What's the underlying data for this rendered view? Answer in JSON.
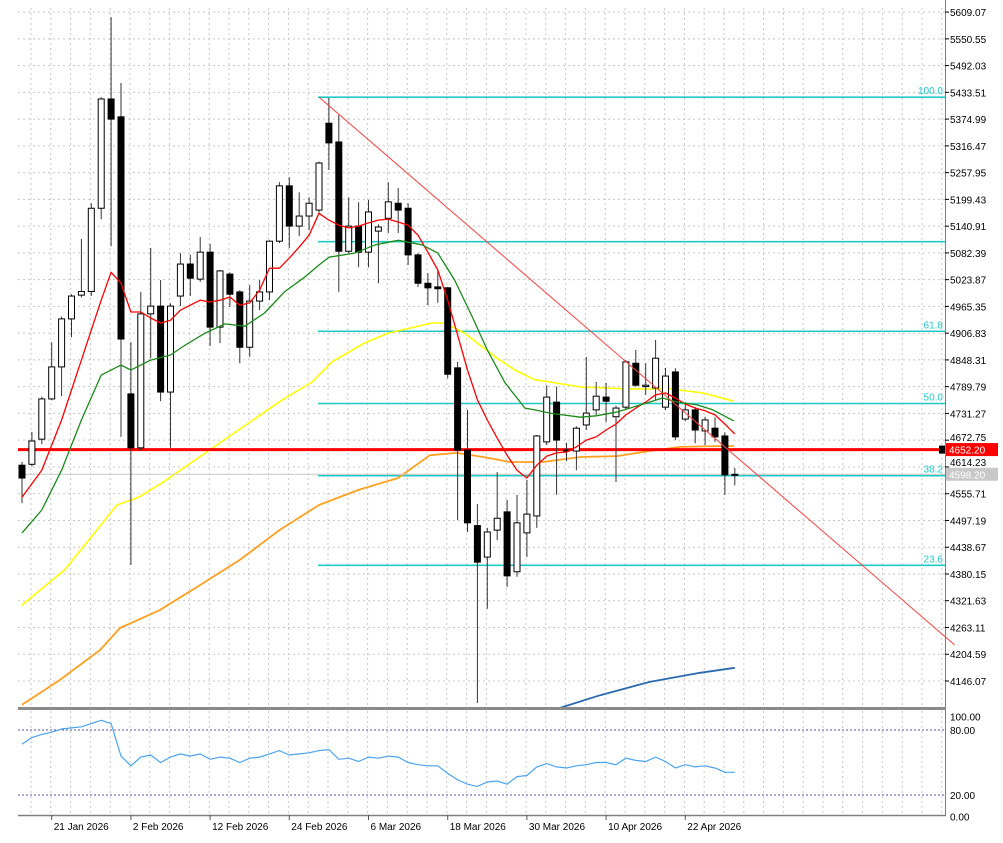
{
  "chart_data": {
    "type": "candlestick",
    "colors": {
      "bull_body": "#ffffff",
      "bear_body": "#000000",
      "wick": "#333333",
      "grid": "#c8c8c8",
      "fib": "#20c8c8",
      "trendline": "#ff4040",
      "price_line": "#ff0000",
      "bid_line": "#c8c8c8",
      "oscillator": "#4aa3f0",
      "osc_levels": "#5050a0"
    },
    "price_axis": {
      "ylim": [
        4087,
        5618
      ],
      "ticks": [
        "5609.07",
        "5550.55",
        "5492.03",
        "5433.51",
        "5374.99",
        "5316.47",
        "5257.95",
        "5199.43",
        "5140.91",
        "5082.39",
        "5023.87",
        "4965.35",
        "4906.83",
        "4848.31",
        "4789.79",
        "4731.27",
        "4672.75",
        "4614.23",
        "4555.71",
        "4497.19",
        "4438.67",
        "4380.15",
        "4321.63",
        "4263.11",
        "4204.59",
        "4146.07"
      ]
    },
    "x_axis": {
      "bar_count": 73,
      "ticks": [
        {
          "bar": 3,
          "label": "21 Jan 2026"
        },
        {
          "bar": 11,
          "label": "2 Feb 2026"
        },
        {
          "bar": 19,
          "label": "12 Feb 2026"
        },
        {
          "bar": 27,
          "label": "24 Feb 2026"
        },
        {
          "bar": 35,
          "label": "6 Mar 2026"
        },
        {
          "bar": 43,
          "label": "18 Mar 2026"
        },
        {
          "bar": 51,
          "label": "30 Mar 2026"
        },
        {
          "bar": 59,
          "label": "10 Apr 2026"
        },
        {
          "bar": 67,
          "label": "22 Apr 2026"
        }
      ]
    },
    "candles_ohlc": [
      [
        4618,
        4625,
        4535,
        4590
      ],
      [
        4620,
        4691,
        4615,
        4671
      ],
      [
        4675,
        4768,
        4664,
        4763
      ],
      [
        4763,
        4887,
        4760,
        4833
      ],
      [
        4833,
        4943,
        4769,
        4938
      ],
      [
        4938,
        4992,
        4898,
        4988
      ],
      [
        4990,
        5113,
        4985,
        4998
      ],
      [
        4998,
        5191,
        4988,
        5180
      ],
      [
        5180,
        5423,
        5156,
        5419
      ],
      [
        5419,
        5598,
        5097,
        5375
      ],
      [
        5380,
        5454,
        4680,
        4894
      ],
      [
        4774,
        4887,
        4400,
        4656
      ],
      [
        4656,
        4997,
        4650,
        4949
      ],
      [
        4949,
        5093,
        4852,
        4966
      ],
      [
        4966,
        5023,
        4758,
        4778
      ],
      [
        4778,
        4972,
        4656,
        4966
      ],
      [
        4988,
        5082,
        4966,
        5058
      ],
      [
        5058,
        5078,
        4988,
        5027
      ],
      [
        5025,
        5117,
        5019,
        5084
      ],
      [
        5084,
        5102,
        4879,
        4920
      ],
      [
        4920,
        5045,
        4885,
        5043
      ],
      [
        5036,
        5040,
        4964,
        4992
      ],
      [
        4997,
        5001,
        4841,
        4876
      ],
      [
        4876,
        5012,
        4855,
        4977
      ],
      [
        4977,
        5023,
        4957,
        4997
      ],
      [
        4997,
        5110,
        4979,
        5108
      ],
      [
        5108,
        5237,
        5104,
        5229
      ],
      [
        5229,
        5248,
        5093,
        5141
      ],
      [
        5141,
        5215,
        5119,
        5163
      ],
      [
        5163,
        5204,
        5132,
        5191
      ],
      [
        5176,
        5282,
        5170,
        5279
      ],
      [
        5366,
        5421,
        5264,
        5323
      ],
      [
        5325,
        5384,
        4997,
        5086
      ],
      [
        5086,
        5204,
        5082,
        5141
      ],
      [
        5141,
        5193,
        5051,
        5084
      ],
      [
        5084,
        5198,
        5051,
        5172
      ],
      [
        5130,
        5145,
        5016,
        5139
      ],
      [
        5158,
        5237,
        5126,
        5194
      ],
      [
        5191,
        5224,
        5126,
        5176
      ],
      [
        5180,
        5191,
        5056,
        5078
      ],
      [
        5078,
        5082,
        5008,
        5016
      ],
      [
        5016,
        5038,
        4968,
        5006
      ],
      [
        5008,
        5045,
        4973,
        5004
      ],
      [
        5006,
        5008,
        4808,
        4817
      ],
      [
        4831,
        4844,
        4498,
        4651
      ],
      [
        4651,
        4739,
        4472,
        4492
      ],
      [
        4486,
        4533,
        4098,
        4406
      ],
      [
        4417,
        4481,
        4304,
        4472
      ],
      [
        4476,
        4603,
        4454,
        4502
      ],
      [
        4516,
        4542,
        4352,
        4376
      ],
      [
        4385,
        4553,
        4374,
        4492
      ],
      [
        4470,
        4586,
        4417,
        4511
      ],
      [
        4507,
        4684,
        4481,
        4682
      ],
      [
        4669,
        4793,
        4662,
        4767
      ],
      [
        4756,
        4790,
        4553,
        4673
      ],
      [
        4651,
        4667,
        4627,
        4649
      ],
      [
        4649,
        4703,
        4607,
        4699
      ],
      [
        4706,
        4855,
        4695,
        4732
      ],
      [
        4739,
        4800,
        4728,
        4769
      ],
      [
        4767,
        4798,
        4712,
        4758
      ],
      [
        4724,
        4748,
        4581,
        4743
      ],
      [
        4745,
        4848,
        4739,
        4844
      ],
      [
        4841,
        4870,
        4790,
        4793
      ],
      [
        4790,
        4841,
        4772,
        4793
      ],
      [
        4787,
        4892,
        4760,
        4852
      ],
      [
        4745,
        4831,
        4739,
        4813
      ],
      [
        4822,
        4830,
        4673,
        4680
      ],
      [
        4719,
        4756,
        4714,
        4739
      ],
      [
        4739,
        4745,
        4666,
        4695
      ],
      [
        4693,
        4724,
        4662,
        4717
      ],
      [
        4699,
        4723,
        4669,
        4680
      ],
      [
        4682,
        4690,
        4553,
        4597
      ],
      [
        4598,
        4612,
        4574,
        4598
      ]
    ],
    "moving_averages": [
      {
        "name": "fast-ma",
        "color": "#ff0000",
        "width": 1.3,
        "points": [
          [
            0,
            4548
          ],
          [
            2,
            4607
          ],
          [
            4,
            4717
          ],
          [
            6,
            4848
          ],
          [
            8,
            4979
          ],
          [
            9,
            5040
          ],
          [
            10,
            5016
          ],
          [
            11,
            4953
          ],
          [
            12,
            4953
          ],
          [
            13,
            4940
          ],
          [
            14,
            4929
          ],
          [
            15,
            4935
          ],
          [
            16,
            4957
          ],
          [
            17,
            4968
          ],
          [
            18,
            4979
          ],
          [
            19,
            4975
          ],
          [
            20,
            4979
          ],
          [
            21,
            4986
          ],
          [
            22,
            4968
          ],
          [
            23,
            4973
          ],
          [
            24,
            5001
          ],
          [
            25,
            5049
          ],
          [
            26,
            5049
          ],
          [
            27,
            5071
          ],
          [
            28,
            5095
          ],
          [
            29,
            5121
          ],
          [
            30,
            5169
          ],
          [
            31,
            5154
          ],
          [
            32,
            5143
          ],
          [
            33,
            5137
          ],
          [
            34,
            5141
          ],
          [
            35,
            5148
          ],
          [
            36,
            5154
          ],
          [
            37,
            5156
          ],
          [
            38,
            5150
          ],
          [
            39,
            5143
          ],
          [
            40,
            5121
          ],
          [
            41,
            5084
          ],
          [
            42,
            5045
          ],
          [
            43,
            4979
          ],
          [
            44,
            4903
          ],
          [
            45,
            4826
          ],
          [
            46,
            4761
          ],
          [
            47,
            4717
          ],
          [
            48,
            4677
          ],
          [
            49,
            4640
          ],
          [
            50,
            4607
          ],
          [
            51,
            4590
          ],
          [
            52,
            4618
          ],
          [
            53,
            4638
          ],
          [
            54,
            4645
          ],
          [
            55,
            4647
          ],
          [
            56,
            4658
          ],
          [
            57,
            4673
          ],
          [
            58,
            4680
          ],
          [
            59,
            4695
          ],
          [
            60,
            4708
          ],
          [
            61,
            4728
          ],
          [
            62,
            4743
          ],
          [
            63,
            4756
          ],
          [
            64,
            4772
          ],
          [
            65,
            4776
          ],
          [
            66,
            4765
          ],
          [
            67,
            4752
          ],
          [
            68,
            4743
          ],
          [
            69,
            4737
          ],
          [
            70,
            4728
          ],
          [
            71,
            4708
          ],
          [
            72,
            4686
          ]
        ]
      },
      {
        "name": "medium-ma",
        "color": "#1a8a1a",
        "width": 1.3,
        "points": [
          [
            0,
            4470
          ],
          [
            2,
            4520
          ],
          [
            4,
            4607
          ],
          [
            6,
            4717
          ],
          [
            8,
            4815
          ],
          [
            10,
            4837
          ],
          [
            11,
            4826
          ],
          [
            13,
            4848
          ],
          [
            15,
            4859
          ],
          [
            16.5,
            4881
          ],
          [
            18.5,
            4907
          ],
          [
            20.5,
            4927
          ],
          [
            22.5,
            4922
          ],
          [
            24.5,
            4951
          ],
          [
            26.5,
            4997
          ],
          [
            28.6,
            5030
          ],
          [
            30,
            5056
          ],
          [
            31,
            5073
          ],
          [
            33.6,
            5082
          ],
          [
            35.7,
            5100
          ],
          [
            38,
            5110
          ],
          [
            40.4,
            5100
          ],
          [
            42,
            5082
          ],
          [
            43.7,
            5023
          ],
          [
            45.5,
            4942
          ],
          [
            47,
            4870
          ],
          [
            48.8,
            4798
          ],
          [
            50.8,
            4743
          ],
          [
            51.8,
            4739
          ],
          [
            53.3,
            4732
          ],
          [
            56.4,
            4723
          ],
          [
            58,
            4726
          ],
          [
            60,
            4734
          ],
          [
            61.4,
            4743
          ],
          [
            63.1,
            4754
          ],
          [
            64.7,
            4765
          ],
          [
            66.2,
            4756
          ],
          [
            68.2,
            4750
          ],
          [
            69.8,
            4739
          ],
          [
            71.9,
            4715
          ]
        ]
      },
      {
        "name": "slow-ma",
        "color": "#ffff00",
        "width": 1.6,
        "points": [
          [
            0,
            4312
          ],
          [
            4.3,
            4389
          ],
          [
            9.6,
            4531
          ],
          [
            11.8,
            4548
          ],
          [
            14.4,
            4583
          ],
          [
            18.8,
            4649
          ],
          [
            26.3,
            4761
          ],
          [
            29.3,
            4800
          ],
          [
            31.3,
            4844
          ],
          [
            34.6,
            4885
          ],
          [
            37,
            4907
          ],
          [
            41.4,
            4929
          ],
          [
            42.7,
            4929
          ],
          [
            44.7,
            4907
          ],
          [
            47.8,
            4855
          ],
          [
            49.8,
            4826
          ],
          [
            51.8,
            4805
          ],
          [
            53.3,
            4800
          ],
          [
            56.4,
            4789
          ],
          [
            61.4,
            4785
          ],
          [
            65.5,
            4785
          ],
          [
            68.8,
            4776
          ],
          [
            71.9,
            4758
          ]
        ]
      },
      {
        "name": "long-ma",
        "color": "#ffa020",
        "width": 1.8,
        "points": [
          [
            0,
            4094
          ],
          [
            3.8,
            4148
          ],
          [
            7.9,
            4214
          ],
          [
            9.9,
            4262
          ],
          [
            13.9,
            4301
          ],
          [
            18,
            4356
          ],
          [
            22,
            4411
          ],
          [
            26,
            4476
          ],
          [
            30,
            4531
          ],
          [
            34,
            4564
          ],
          [
            38,
            4590
          ],
          [
            41.2,
            4640
          ],
          [
            43.9,
            4645
          ],
          [
            46.6,
            4636
          ],
          [
            49.3,
            4625
          ],
          [
            52.6,
            4625
          ],
          [
            56.4,
            4636
          ],
          [
            60.1,
            4638
          ],
          [
            63.4,
            4649
          ],
          [
            66.5,
            4658
          ],
          [
            70.8,
            4660
          ],
          [
            71.9,
            4660
          ]
        ]
      },
      {
        "name": "very-long-ma",
        "color": "#2a6ab0",
        "width": 1.8,
        "points": [
          [
            54.3,
            4087
          ],
          [
            58.4,
            4115
          ],
          [
            63.4,
            4144
          ],
          [
            68.5,
            4164
          ],
          [
            72,
            4175
          ]
        ]
      }
    ],
    "fibonacci": {
      "start_bar": 30,
      "levels": [
        {
          "label": "100.0",
          "price": 5423
        },
        {
          "label": "",
          "price": 5107
        },
        {
          "label": "61.8",
          "price": 4911
        },
        {
          "label": "50.0",
          "price": 4753
        },
        {
          "label": "38.2",
          "price": 4595
        },
        {
          "label": "23.6",
          "price": 4399
        }
      ]
    },
    "trendline": [
      [
        30,
        5423
      ],
      [
        94.2,
        4225
      ]
    ],
    "horizontal_lines": [
      {
        "name": "price-level-line",
        "price": 4652.2,
        "label": "4652.20",
        "color": "#ff0000",
        "text_color": "#ffffff",
        "width": 3
      },
      {
        "name": "bid-line",
        "price": 4598.2,
        "label": "4598.20",
        "color": "#c8c8c8",
        "text_color": "#ffffff",
        "width": 1
      }
    ],
    "oscillator": {
      "ylim": [
        0,
        100
      ],
      "tick_labels": [
        {
          "value": 100,
          "label": "100.00"
        },
        {
          "value": 80,
          "label": "80.00"
        },
        {
          "value": 20,
          "label": "20.00"
        },
        {
          "value": 0,
          "label": "0.00"
        }
      ],
      "levels": [
        80,
        20
      ],
      "values": [
        67,
        73,
        76,
        78,
        81,
        82,
        83,
        86,
        89,
        86,
        56,
        47,
        55,
        57,
        50,
        55,
        58,
        56,
        58,
        53,
        55,
        54,
        50,
        54,
        55,
        58,
        61,
        57,
        58,
        59,
        61,
        62,
        53,
        54,
        51,
        55,
        54,
        56,
        55,
        50,
        48,
        47,
        47,
        40,
        34,
        30,
        28,
        32,
        33,
        30,
        37,
        38,
        46,
        49,
        46,
        45,
        47,
        48,
        50,
        50,
        48,
        54,
        52,
        51,
        55,
        51,
        45,
        48,
        46,
        47,
        45,
        41,
        41
      ]
    }
  }
}
